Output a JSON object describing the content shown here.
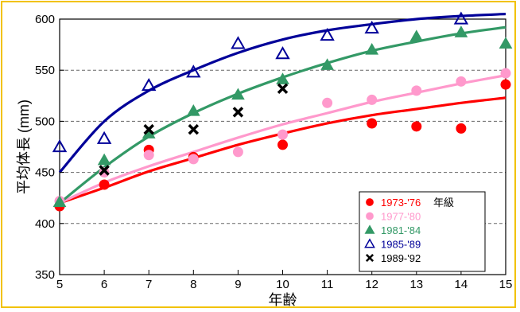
{
  "chart_data": {
    "type": "scatter",
    "xlabel": "年齢",
    "ylabel": "平均体長 (mm)",
    "xlim": [
      5,
      15
    ],
    "ylim": [
      350,
      600
    ],
    "x_ticks": [
      "5",
      "6",
      "7",
      "8",
      "9",
      "10",
      "11",
      "12",
      "13",
      "14",
      "15"
    ],
    "y_ticks": [
      "350",
      "400",
      "450",
      "500",
      "550",
      "600"
    ],
    "grid": "horizontal dashed at 450, 500, 550",
    "legend_position": "bottom-right",
    "series": [
      {
        "name": "1973-'76",
        "label_suffix": "年級",
        "color": "#ff0000",
        "marker": "circle-filled",
        "points": [
          [
            5,
            417
          ],
          [
            6,
            438
          ],
          [
            7,
            472
          ],
          [
            8,
            465
          ],
          [
            10,
            477
          ],
          [
            12,
            498
          ],
          [
            13,
            495
          ],
          [
            14,
            493
          ],
          [
            15,
            536
          ]
        ],
        "fit": [
          [
            5,
            420
          ],
          [
            6,
            435
          ],
          [
            7,
            451
          ],
          [
            8,
            464
          ],
          [
            9,
            477
          ],
          [
            10,
            488
          ],
          [
            11,
            498
          ],
          [
            12,
            506
          ],
          [
            13,
            512
          ],
          [
            14,
            518
          ],
          [
            15,
            523
          ]
        ]
      },
      {
        "name": "1977-'80",
        "color": "#ff99cc",
        "marker": "circle-filled",
        "points": [
          [
            5,
            422
          ],
          [
            6,
            450
          ],
          [
            7,
            467
          ],
          [
            8,
            463
          ],
          [
            9,
            470
          ],
          [
            10,
            487
          ],
          [
            11,
            518
          ],
          [
            12,
            521
          ],
          [
            13,
            530
          ],
          [
            14,
            539
          ],
          [
            15,
            547
          ]
        ],
        "fit": [
          [
            5,
            420
          ],
          [
            6,
            440
          ],
          [
            7,
            456
          ],
          [
            8,
            470
          ],
          [
            9,
            484
          ],
          [
            10,
            497
          ],
          [
            11,
            508
          ],
          [
            12,
            519
          ],
          [
            13,
            528
          ],
          [
            14,
            537
          ],
          [
            15,
            545
          ]
        ]
      },
      {
        "name": "1981-'84",
        "color": "#339966",
        "marker": "triangle-filled",
        "points": [
          [
            5,
            421
          ],
          [
            6,
            462
          ],
          [
            7,
            488
          ],
          [
            8,
            510
          ],
          [
            9,
            526
          ],
          [
            10,
            541
          ],
          [
            11,
            555
          ],
          [
            12,
            570
          ],
          [
            13,
            583
          ],
          [
            14,
            587
          ],
          [
            15,
            576
          ]
        ],
        "fit": [
          [
            5,
            420
          ],
          [
            6,
            455
          ],
          [
            7,
            485
          ],
          [
            8,
            508
          ],
          [
            9,
            527
          ],
          [
            10,
            543
          ],
          [
            11,
            557
          ],
          [
            12,
            569
          ],
          [
            13,
            578
          ],
          [
            14,
            586
          ],
          [
            15,
            592
          ]
        ]
      },
      {
        "name": "1985-'89",
        "color": "#000099",
        "marker": "triangle-open",
        "points": [
          [
            5,
            475
          ],
          [
            6,
            483
          ],
          [
            7,
            535
          ],
          [
            8,
            548
          ],
          [
            9,
            576
          ],
          [
            10,
            566
          ],
          [
            11,
            584
          ],
          [
            12,
            591
          ],
          [
            14,
            600
          ]
        ],
        "fit": [
          [
            5,
            450
          ],
          [
            6,
            500
          ],
          [
            7,
            530
          ],
          [
            8,
            550
          ],
          [
            9,
            567
          ],
          [
            10,
            580
          ],
          [
            11,
            589
          ],
          [
            12,
            595
          ],
          [
            13,
            600
          ],
          [
            14,
            603
          ],
          [
            15,
            605
          ]
        ]
      },
      {
        "name": "1989-'92",
        "color": "#000000",
        "marker": "x",
        "points": [
          [
            6,
            452
          ],
          [
            7,
            492
          ],
          [
            8,
            492
          ],
          [
            9,
            509
          ],
          [
            10,
            532
          ]
        ]
      }
    ]
  }
}
